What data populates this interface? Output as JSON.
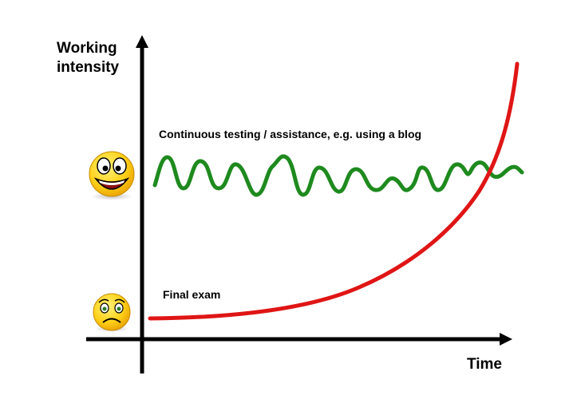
{
  "diagram": {
    "y_axis_label_line1": "Working",
    "y_axis_label_line2": "intensity",
    "x_axis_label": "Time",
    "green_curve_label": "Continuous testing / assistance, e.g. using a blog",
    "red_curve_label": "Final exam"
  },
  "icons": {
    "happy": "happy-face-icon",
    "worried": "worried-face-icon"
  },
  "colors": {
    "green_curve": "#1e8a1e",
    "red_curve": "#e01515",
    "axis": "#000000",
    "face_yellow": "#ffd21a"
  }
}
